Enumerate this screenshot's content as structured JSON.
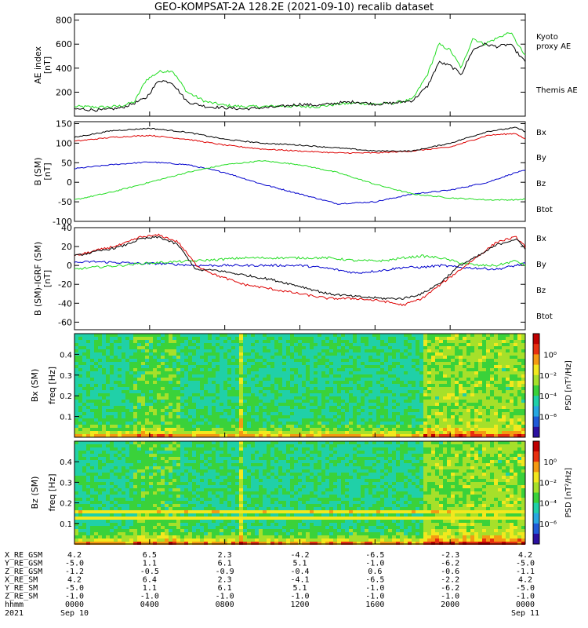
{
  "title": "GEO-KOMPSAT-2A 128.2E (2021-09-10) recalib dataset",
  "colors": {
    "black": "#000000",
    "green": "#22dd22",
    "blue": "#0000cc",
    "red": "#dd0000",
    "legend_green": "#22cc22"
  },
  "chart_data": [
    {
      "id": "ae",
      "type": "line",
      "ylabel": [
        "AE index",
        "[nT]"
      ],
      "ylim": [
        0,
        850
      ],
      "yticks": [
        200,
        400,
        600,
        800
      ],
      "x": [
        0,
        1.5,
        2.5,
        3.2,
        3.8,
        4.5,
        5.2,
        6.0,
        7,
        8,
        9,
        10,
        11,
        12,
        13,
        14,
        15,
        16,
        17,
        18,
        18.8,
        19.4,
        20.0,
        20.6,
        21.2,
        21.8,
        22.5,
        23.2,
        24
      ],
      "series": [
        {
          "name": "Kyoto proxy AE",
          "color": "green",
          "values": [
            80,
            75,
            85,
            120,
            300,
            370,
            380,
            200,
            120,
            90,
            80,
            80,
            85,
            80,
            80,
            100,
            110,
            100,
            110,
            140,
            350,
            600,
            550,
            400,
            650,
            600,
            650,
            700,
            500
          ]
        },
        {
          "name": "Themis AE",
          "color": "black",
          "values": [
            60,
            50,
            70,
            110,
            150,
            300,
            280,
            120,
            80,
            70,
            60,
            70,
            80,
            100,
            90,
            110,
            120,
            100,
            110,
            130,
            250,
            450,
            420,
            350,
            550,
            600,
            580,
            600,
            450
          ]
        }
      ],
      "legend": [
        {
          "text": "Kyoto",
          "color": "green"
        },
        {
          "text": "proxy AE",
          "color": "green"
        },
        {
          "text": "Themis AE",
          "color": "black"
        }
      ]
    },
    {
      "id": "bsm",
      "type": "line",
      "ylabel": [
        "B (SM)",
        "[nT]"
      ],
      "ylim": [
        -100,
        155
      ],
      "yticks": [
        -100,
        -50,
        0,
        50,
        100,
        150
      ],
      "x": [
        0,
        2,
        4,
        6,
        8,
        10,
        12,
        14,
        16,
        18,
        20,
        22,
        23.5,
        24
      ],
      "series": [
        {
          "name": "Bx",
          "color": "blue",
          "values": [
            35,
            45,
            52,
            45,
            25,
            -5,
            -30,
            -55,
            -50,
            -30,
            -20,
            0,
            25,
            30
          ]
        },
        {
          "name": "By",
          "color": "green",
          "values": [
            -45,
            -25,
            0,
            25,
            45,
            55,
            45,
            25,
            -5,
            -30,
            -40,
            -45,
            -45,
            -43
          ]
        },
        {
          "name": "Bz",
          "color": "red",
          "values": [
            105,
            115,
            120,
            110,
            95,
            85,
            80,
            75,
            75,
            80,
            90,
            120,
            125,
            110
          ]
        },
        {
          "name": "Btot",
          "color": "black",
          "values": [
            115,
            132,
            138,
            128,
            110,
            100,
            95,
            88,
            80,
            80,
            100,
            130,
            140,
            130
          ]
        }
      ],
      "legend": [
        {
          "text": "Bx",
          "color": "blue"
        },
        {
          "text": "By",
          "color": "green"
        },
        {
          "text": "Bz",
          "color": "red"
        },
        {
          "text": "Btot",
          "color": "black"
        }
      ]
    },
    {
      "id": "bigrf",
      "type": "line",
      "ylabel": [
        "B (SM)-IGRF (SM)",
        "[nT]"
      ],
      "ylim": [
        -68,
        40
      ],
      "yticks": [
        -60,
        -40,
        -20,
        0,
        20,
        40
      ],
      "x": [
        0,
        1,
        2.5,
        3.5,
        4.5,
        5.5,
        6.5,
        7.5,
        9,
        10.5,
        12,
        13.5,
        15,
        16.5,
        17.5,
        18.5,
        19.5,
        20.5,
        21.5,
        22.5,
        23.5,
        24
      ],
      "series": [
        {
          "name": "Bx",
          "color": "blue",
          "values": [
            3,
            4,
            3,
            2,
            2,
            1,
            0,
            0,
            0,
            0,
            0,
            -3,
            -8,
            -5,
            -2,
            -2,
            0,
            -2,
            -3,
            -4,
            0,
            2
          ]
        },
        {
          "name": "By",
          "color": "green",
          "values": [
            -4,
            -2,
            0,
            2,
            3,
            4,
            5,
            6,
            8,
            8,
            8,
            8,
            5,
            5,
            8,
            10,
            8,
            3,
            0,
            0,
            5,
            0
          ]
        },
        {
          "name": "Bz",
          "color": "red",
          "values": [
            10,
            15,
            22,
            30,
            32,
            25,
            0,
            -10,
            -20,
            -25,
            -30,
            -35,
            -35,
            -38,
            -42,
            -35,
            -20,
            -5,
            10,
            25,
            30,
            20
          ]
        },
        {
          "name": "Btot",
          "color": "black",
          "values": [
            10,
            14,
            20,
            28,
            30,
            22,
            -5,
            -5,
            -10,
            -15,
            -22,
            -30,
            -33,
            -35,
            -35,
            -30,
            -18,
            0,
            10,
            22,
            28,
            18
          ]
        }
      ],
      "legend": [
        {
          "text": "Bx",
          "color": "blue"
        },
        {
          "text": "By",
          "color": "green"
        },
        {
          "text": "Bz",
          "color": "red"
        },
        {
          "text": "Btot",
          "color": "black"
        }
      ]
    },
    {
      "id": "spec_bx",
      "type": "heatmap",
      "ylabel": [
        "Bx (SM)",
        "freq [Hz]"
      ],
      "ylim": [
        0,
        0.5
      ],
      "yticks": [
        0.1,
        0.2,
        0.3,
        0.4
      ],
      "ytick_labels": [
        "0.1",
        "0.2",
        "0.3",
        "0.4"
      ],
      "colorbar": {
        "label": "PSD [nT²/Hz]",
        "scale": "log",
        "tick_labels": [
          "10⁰",
          "10⁻²",
          "10⁻⁴",
          "10⁻⁶"
        ]
      }
    },
    {
      "id": "spec_bz",
      "type": "heatmap",
      "ylabel": [
        "Bz (SM)",
        "freq [Hz]"
      ],
      "ylim": [
        0,
        0.5
      ],
      "yticks": [
        0.1,
        0.2,
        0.3,
        0.4
      ],
      "ytick_labels": [
        "0.1",
        "0.2",
        "0.3",
        "0.4"
      ],
      "colorbar": {
        "label": "PSD [nT²/Hz]",
        "scale": "log",
        "tick_labels": [
          "10⁰",
          "10⁻²",
          "10⁻⁴",
          "10⁻⁶"
        ]
      }
    }
  ],
  "xaxis": {
    "xlim_hours": [
      0,
      24
    ],
    "ticks_hours": [
      0,
      4,
      8,
      12,
      16,
      20,
      24
    ]
  },
  "ephemeris": {
    "rows": [
      {
        "label": "X_RE_GSM",
        "values": [
          "4.2",
          "6.5",
          "2.3",
          "-4.2",
          "-6.5",
          "-2.3",
          "4.2"
        ]
      },
      {
        "label": "Y_RE_GSM",
        "values": [
          "-5.0",
          "1.1",
          "6.1",
          "5.1",
          "-1.0",
          "-6.2",
          "-5.0"
        ]
      },
      {
        "label": "Z_RE_GSM",
        "values": [
          "-1.2",
          "-0.5",
          "-0.9",
          "-0.4",
          "0.6",
          "-0.6",
          "-1.1"
        ]
      },
      {
        "label": "X_RE_SM",
        "values": [
          "4.2",
          "6.4",
          "2.3",
          "-4.1",
          "-6.5",
          "-2.2",
          "4.2"
        ]
      },
      {
        "label": "Y_RE_SM",
        "values": [
          "-5.0",
          "1.1",
          "6.1",
          "5.1",
          "-1.0",
          "-6.2",
          "-5.0"
        ]
      },
      {
        "label": "Z_RE_SM",
        "values": [
          "-1.0",
          "-1.0",
          "-1.0",
          "-1.0",
          "-1.0",
          "-1.0",
          "-1.0"
        ]
      },
      {
        "label": "hhmm",
        "values": [
          "0000",
          "0400",
          "0800",
          "1200",
          "1600",
          "2000",
          "0000"
        ]
      }
    ],
    "year": "2021",
    "start_date": "Sep 10",
    "end_date": "Sep 11"
  }
}
